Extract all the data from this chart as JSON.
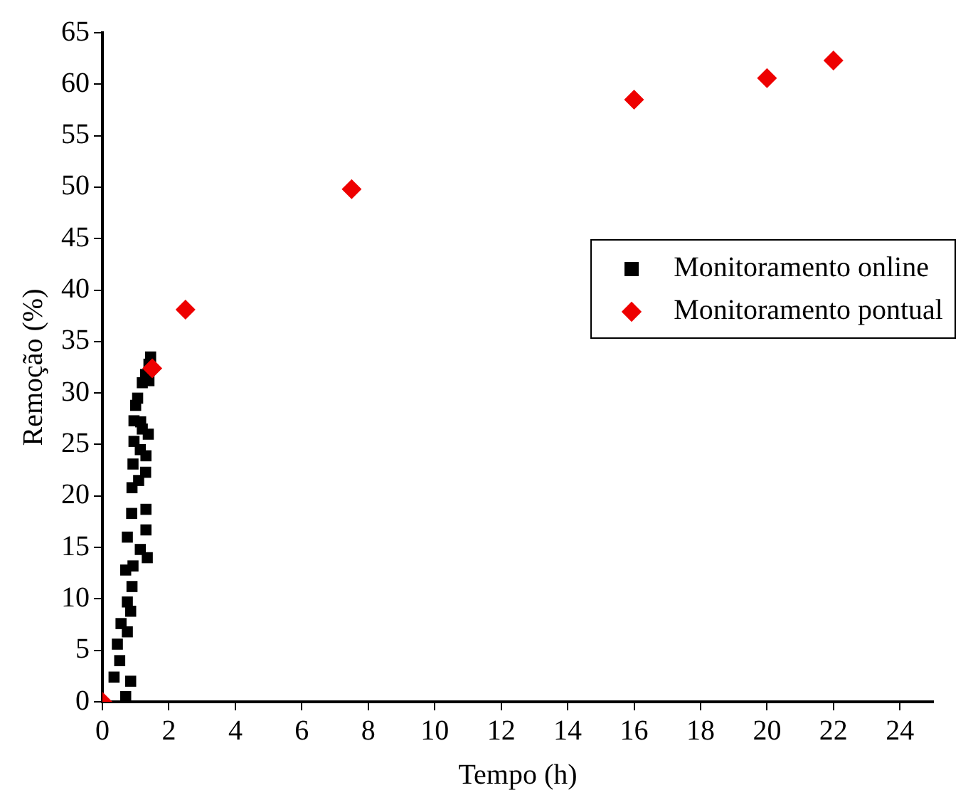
{
  "chart_data": {
    "type": "scatter",
    "xlabel": "Tempo (h)",
    "ylabel": "Remoção (%)",
    "xlim": [
      0,
      25
    ],
    "xticks": [
      0,
      2,
      4,
      6,
      8,
      10,
      12,
      14,
      16,
      18,
      20,
      22,
      24
    ],
    "ylim": [
      0,
      65
    ],
    "yticks": [
      0,
      5,
      10,
      15,
      20,
      25,
      30,
      35,
      40,
      45,
      50,
      55,
      60,
      65
    ],
    "grid": false,
    "legend": "right",
    "series": [
      {
        "name": "Monitoramento online",
        "color": "#000000",
        "marker": "square",
        "x": [
          0.7,
          0.85,
          0.35,
          0.52,
          0.45,
          0.75,
          0.56,
          0.85,
          0.75,
          0.89,
          0.7,
          0.92,
          1.35,
          1.14,
          0.75,
          1.31,
          0.88,
          1.31,
          0.89,
          1.09,
          1.3,
          0.92,
          1.31,
          1.14,
          0.95,
          1.38,
          1.2,
          1.15,
          0.95,
          1.0,
          1.06,
          1.2,
          1.4,
          1.3,
          1.45,
          1.4
        ],
        "values": [
          0.5,
          2.0,
          2.4,
          4.0,
          5.6,
          6.8,
          7.6,
          8.8,
          9.7,
          11.2,
          12.8,
          13.2,
          14.0,
          14.8,
          16.0,
          16.7,
          18.3,
          18.7,
          20.8,
          21.5,
          22.3,
          23.1,
          23.9,
          24.5,
          25.3,
          26.0,
          26.5,
          27.2,
          27.3,
          28.8,
          29.5,
          31.0,
          31.2,
          31.8,
          33.5,
          32.8
        ]
      },
      {
        "name": "Monitoramento pontual",
        "color": "#ee0000",
        "marker": "diamond",
        "x": [
          0,
          1.5,
          2.5,
          7.5,
          16,
          20,
          22
        ],
        "values": [
          0,
          32.4,
          38.1,
          49.8,
          58.5,
          60.6,
          62.3
        ]
      }
    ]
  }
}
